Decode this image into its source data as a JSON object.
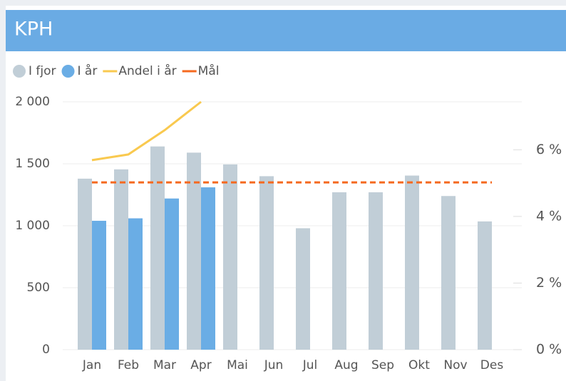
{
  "chart_data": {
    "type": "bar",
    "title": "KPH",
    "categories": [
      "Jan",
      "Feb",
      "Mar",
      "Apr",
      "Mai",
      "Jun",
      "Jul",
      "Aug",
      "Sep",
      "Okt",
      "Nov",
      "Des"
    ],
    "series": [
      {
        "name": "I fjor",
        "type": "bar",
        "color": "#c1ced7",
        "values": [
          1380,
          1455,
          1640,
          1590,
          1495,
          1400,
          980,
          1270,
          1270,
          1405,
          1240,
          1035
        ]
      },
      {
        "name": "I år",
        "type": "bar",
        "color": "#6aade5",
        "values": [
          1040,
          1060,
          1220,
          1310,
          null,
          null,
          null,
          null,
          null,
          null,
          null,
          null
        ]
      },
      {
        "name": "Andel i år",
        "type": "line",
        "axis": "y2",
        "color": "#f9c94f",
        "values": [
          5.69,
          5.86,
          6.59,
          7.44,
          null,
          null,
          null,
          null,
          null,
          null,
          null,
          null
        ]
      },
      {
        "name": "Mål",
        "type": "line",
        "dashed": true,
        "color": "#f5691f",
        "values": [
          1350,
          1350,
          1350,
          1350,
          1350,
          1350,
          1350,
          1350,
          1350,
          1350,
          1350,
          1350
        ]
      }
    ],
    "ylim": [
      0,
      2000
    ],
    "yticks": [
      0,
      500,
      {
        "value": 1000,
        "label": "1 000"
      },
      {
        "value": 1500,
        "label": "1 500"
      },
      {
        "value": 2000,
        "label": "2 000"
      }
    ],
    "y2lim": [
      0,
      7.44
    ],
    "y2ticks": [
      {
        "value": 0,
        "label": "0 %"
      },
      {
        "value": 2,
        "label": "2 %"
      },
      {
        "value": 4,
        "label": "4 %"
      },
      {
        "value": 6,
        "label": "6 %"
      }
    ],
    "grid": true,
    "legend": "top-left"
  }
}
